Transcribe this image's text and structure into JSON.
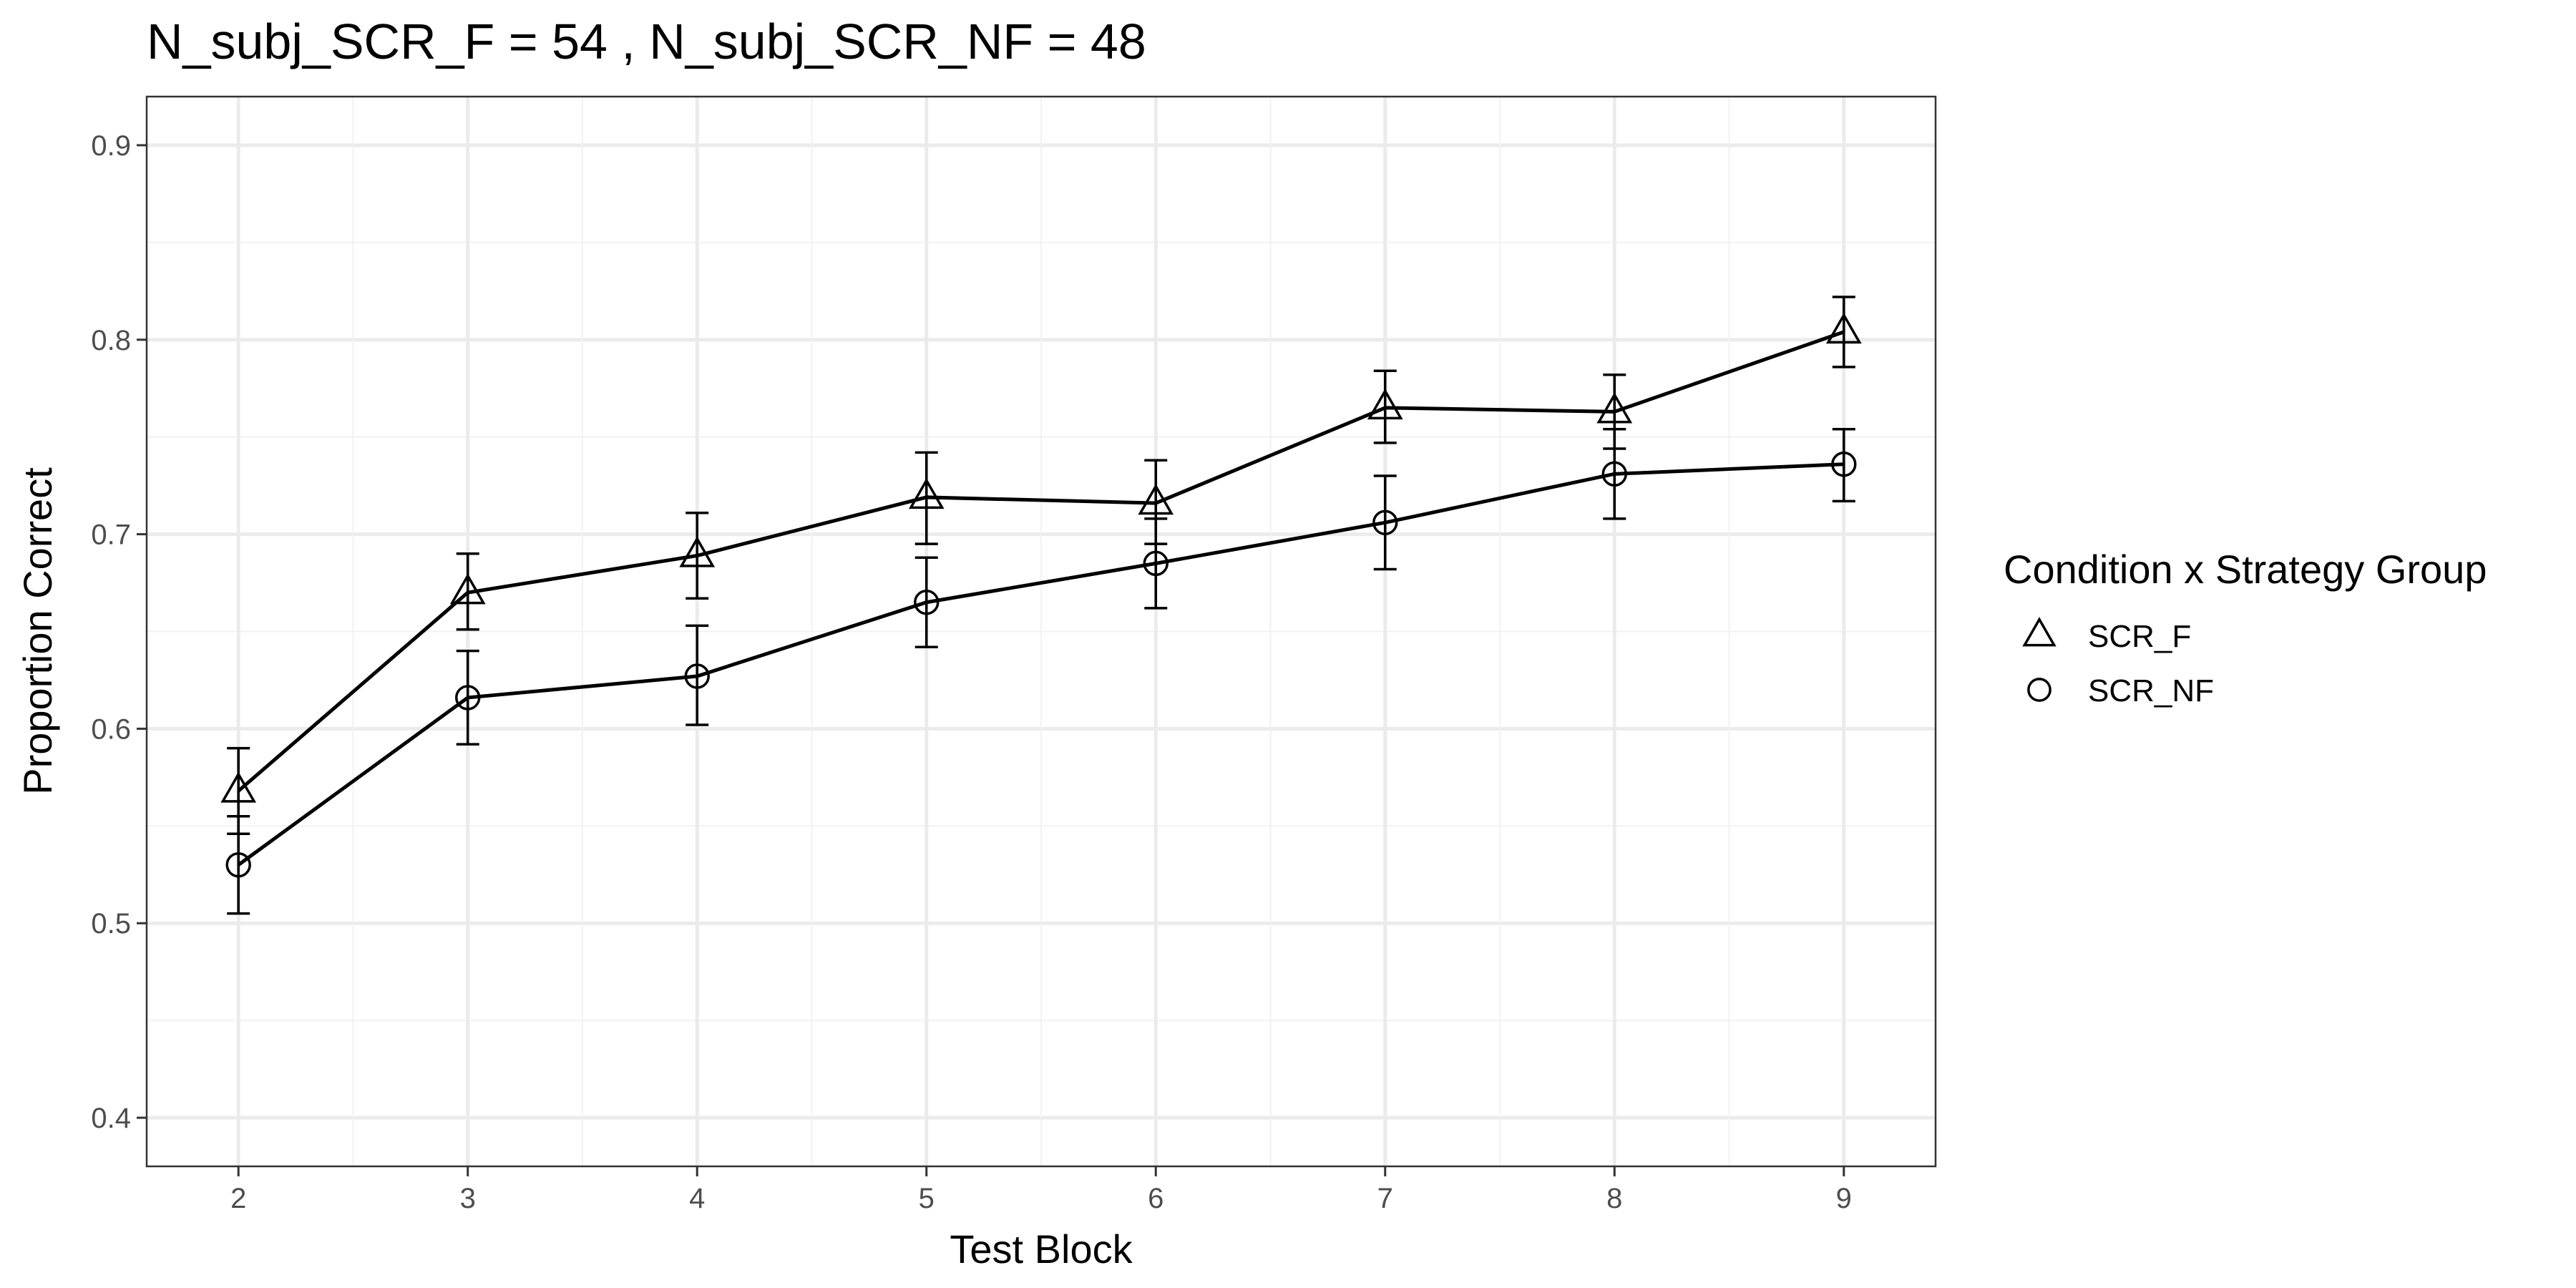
{
  "chart_data": {
    "type": "line",
    "title": "N_subj_SCR_F =  54 , N_subj_SCR_NF =  48",
    "xlabel": "Test Block",
    "ylabel": "Proportion Correct",
    "x": [
      2,
      3,
      4,
      5,
      6,
      7,
      8,
      9
    ],
    "xlim": [
      1.6,
      9.4
    ],
    "ylim": [
      0.375,
      0.925
    ],
    "yticks": [
      0.4,
      0.5,
      0.6,
      0.7,
      0.8,
      0.9
    ],
    "ytick_labels": [
      "0.4",
      "0.5",
      "0.6",
      "0.7",
      "0.8",
      "0.9"
    ],
    "xtick_labels": [
      "2",
      "3",
      "4",
      "5",
      "6",
      "7",
      "8",
      "9"
    ],
    "grid": true,
    "legend": {
      "title": "Condition x Strategy Group",
      "placement": "right"
    },
    "series": [
      {
        "name": "SCR_F",
        "marker": "triangle",
        "values": [
          0.568,
          0.67,
          0.689,
          0.719,
          0.716,
          0.765,
          0.763,
          0.804
        ],
        "err_low": [
          0.546,
          0.651,
          0.667,
          0.695,
          0.695,
          0.747,
          0.744,
          0.786
        ],
        "err_high": [
          0.59,
          0.69,
          0.711,
          0.742,
          0.738,
          0.784,
          0.782,
          0.822
        ]
      },
      {
        "name": "SCR_NF",
        "marker": "circle",
        "values": [
          0.53,
          0.616,
          0.627,
          0.665,
          0.685,
          0.706,
          0.731,
          0.736
        ],
        "err_low": [
          0.505,
          0.592,
          0.602,
          0.642,
          0.662,
          0.682,
          0.708,
          0.717
        ],
        "err_high": [
          0.555,
          0.64,
          0.653,
          0.688,
          0.708,
          0.73,
          0.754,
          0.754
        ]
      }
    ]
  }
}
